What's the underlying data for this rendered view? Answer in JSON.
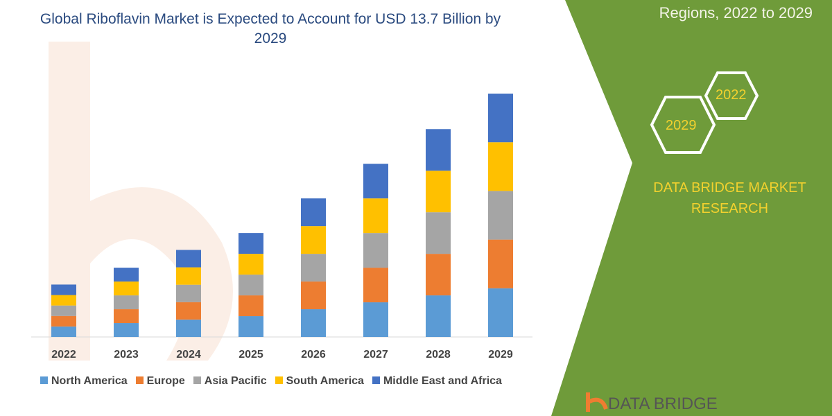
{
  "header": {
    "title": "Global Riboflavin Market is Expected to Account for USD 13.7 Billion by 2029",
    "side_title": "Regions, 2022 to 2029"
  },
  "badges": {
    "hex_a": "2022",
    "hex_b": "2029",
    "brand": "DATA BRIDGE MARKET RESEARCH",
    "logo": "DATA BRIDGE"
  },
  "colors": {
    "panel": "#6f9b3a",
    "accent_text": "#f2d12e"
  },
  "chart_data": {
    "type": "bar",
    "stacked": true,
    "grid": false,
    "categories": [
      "2022",
      "2023",
      "2024",
      "2025",
      "2026",
      "2027",
      "2028",
      "2029"
    ],
    "legend_position": "bottom",
    "series": [
      {
        "name": "North America",
        "color": "#5b9bd5",
        "values": [
          0.59,
          0.78,
          0.98,
          1.17,
          1.56,
          1.95,
          2.34,
          2.74
        ]
      },
      {
        "name": "Europe",
        "color": "#ed7d31",
        "values": [
          0.59,
          0.78,
          0.98,
          1.17,
          1.56,
          1.95,
          2.34,
          2.74
        ]
      },
      {
        "name": "Asia Pacific",
        "color": "#a5a5a5",
        "values": [
          0.59,
          0.78,
          0.98,
          1.17,
          1.56,
          1.95,
          2.34,
          2.74
        ]
      },
      {
        "name": "South America",
        "color": "#ffc000",
        "values": [
          0.59,
          0.78,
          0.98,
          1.17,
          1.56,
          1.95,
          2.34,
          2.74
        ]
      },
      {
        "name": "Middle East and Africa",
        "color": "#4472c4",
        "values": [
          0.59,
          0.78,
          0.98,
          1.17,
          1.56,
          1.95,
          2.34,
          2.74
        ]
      }
    ]
  }
}
